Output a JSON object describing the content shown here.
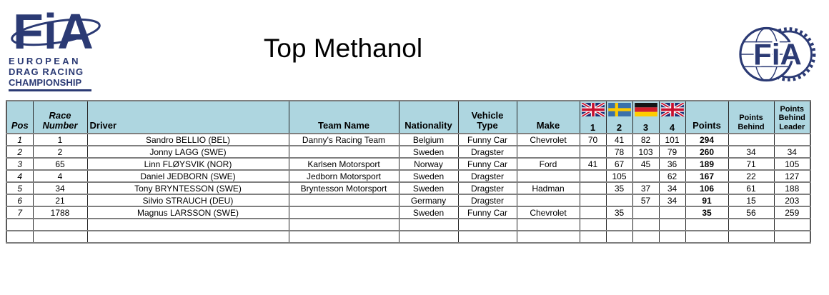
{
  "title": "Top Methanol",
  "logo_left": {
    "fia_text": "FiA",
    "line1": "EUROPEAN",
    "line2": "DRAG RACING",
    "line3": "CHAMPIONSHIP"
  },
  "logo_right": {
    "fia_text": "FiA"
  },
  "colors": {
    "header_bg": "#aed6e0",
    "logo_navy": "#2b3a74",
    "grid_horizontal": "#7f7f7f",
    "grid_vertical": "#262626",
    "uk_flag_blue": "#1d3176",
    "uk_flag_red": "#c8102e",
    "sweden_flag_blue": "#3a70ab",
    "sweden_flag_yellow": "#fdca00",
    "germany_black": "#151515",
    "germany_red": "#d31e2a",
    "germany_gold": "#ffcc00"
  },
  "table": {
    "header": {
      "pos": "Pos",
      "race_number": "Race Number",
      "driver": "Driver",
      "team": "Team Name",
      "nationality": "Nationality",
      "vehicle": "Vehicle Type",
      "make": "Make",
      "points": "Points",
      "points_behind": "Points Behind",
      "points_behind_leader": "Points Behind Leader",
      "rounds": [
        {
          "label": "1",
          "flag": "uk"
        },
        {
          "label": "2",
          "flag": "sweden"
        },
        {
          "label": "3",
          "flag": "germany"
        },
        {
          "label": "4",
          "flag": "uk"
        }
      ]
    },
    "rows": [
      {
        "pos": "1",
        "race_number": "1",
        "driver": "Sandro BELLIO (BEL)",
        "team": "Danny's Racing Team",
        "nationality": "Belgium",
        "vehicle": "Funny Car",
        "make": "Chevrolet",
        "r1": "70",
        "r2": "41",
        "r3": "82",
        "r4": "101",
        "points": "294",
        "behind": "",
        "behind_leader": ""
      },
      {
        "pos": "2",
        "race_number": "2",
        "driver": "Jonny LAGG (SWE)",
        "team": "",
        "nationality": "Sweden",
        "vehicle": "Dragster",
        "make": "",
        "r1": "",
        "r2": "78",
        "r3": "103",
        "r4": "79",
        "points": "260",
        "behind": "34",
        "behind_leader": "34"
      },
      {
        "pos": "3",
        "race_number": "65",
        "driver": "Linn FLØYSVIK (NOR)",
        "team": "Karlsen Motorsport",
        "nationality": "Norway",
        "vehicle": "Funny Car",
        "make": "Ford",
        "r1": "41",
        "r2": "67",
        "r3": "45",
        "r4": "36",
        "points": "189",
        "behind": "71",
        "behind_leader": "105"
      },
      {
        "pos": "4",
        "race_number": "4",
        "driver": "Daniel JEDBORN (SWE)",
        "team": "Jedborn Motorsport",
        "nationality": "Sweden",
        "vehicle": "Dragster",
        "make": "",
        "r1": "",
        "r2": "105",
        "r3": "",
        "r4": "62",
        "points": "167",
        "behind": "22",
        "behind_leader": "127"
      },
      {
        "pos": "5",
        "race_number": "34",
        "driver": "Tony BRYNTESSON (SWE)",
        "team": "Bryntesson Motorsport",
        "nationality": "Sweden",
        "vehicle": "Dragster",
        "make": "Hadman",
        "r1": "",
        "r2": "35",
        "r3": "37",
        "r4": "34",
        "points": "106",
        "behind": "61",
        "behind_leader": "188"
      },
      {
        "pos": "6",
        "race_number": "21",
        "driver": "Silvio STRAUCH (DEU)",
        "team": "",
        "nationality": "Germany",
        "vehicle": "Dragster",
        "make": "",
        "r1": "",
        "r2": "",
        "r3": "57",
        "r4": "34",
        "points": "91",
        "behind": "15",
        "behind_leader": "203"
      },
      {
        "pos": "7",
        "race_number": "1788",
        "driver": "Magnus LARSSON (SWE)",
        "team": "",
        "nationality": "Sweden",
        "vehicle": "Funny Car",
        "make": "Chevrolet",
        "r1": "",
        "r2": "35",
        "r3": "",
        "r4": "",
        "points": "35",
        "behind": "56",
        "behind_leader": "259"
      }
    ],
    "empty_rows": 2
  }
}
